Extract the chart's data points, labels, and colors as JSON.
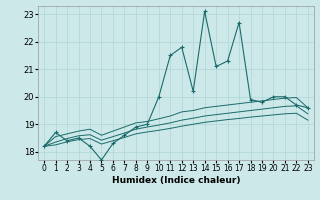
{
  "title": "",
  "xlabel": "Humidex (Indice chaleur)",
  "background_color": "#cce8e8",
  "line_color": "#1a6b6b",
  "grid_color": "#afd4d4",
  "xlim": [
    -0.5,
    23.5
  ],
  "ylim": [
    17.7,
    23.3
  ],
  "yticks": [
    18,
    19,
    20,
    21,
    22,
    23
  ],
  "xticks": [
    0,
    1,
    2,
    3,
    4,
    5,
    6,
    7,
    8,
    9,
    10,
    11,
    12,
    13,
    14,
    15,
    16,
    17,
    18,
    19,
    20,
    21,
    22,
    23
  ],
  "series_main": [
    18.2,
    18.7,
    18.4,
    18.5,
    18.2,
    17.7,
    18.3,
    18.6,
    18.9,
    19.0,
    20.0,
    21.5,
    21.8,
    20.2,
    23.1,
    21.1,
    21.3,
    22.7,
    19.9,
    19.8,
    20.0,
    20.0,
    19.7,
    19.6
  ],
  "series_smooth1": [
    18.2,
    18.55,
    18.65,
    18.75,
    18.82,
    18.6,
    18.75,
    18.9,
    19.05,
    19.1,
    19.2,
    19.3,
    19.45,
    19.5,
    19.6,
    19.65,
    19.7,
    19.75,
    19.8,
    19.85,
    19.9,
    19.95,
    19.97,
    19.6
  ],
  "series_smooth2": [
    18.2,
    18.35,
    18.48,
    18.58,
    18.62,
    18.42,
    18.55,
    18.68,
    18.82,
    18.9,
    18.97,
    19.05,
    19.15,
    19.22,
    19.3,
    19.35,
    19.4,
    19.45,
    19.5,
    19.55,
    19.6,
    19.65,
    19.67,
    19.38
  ],
  "series_smooth3": [
    18.2,
    18.25,
    18.36,
    18.44,
    18.48,
    18.28,
    18.4,
    18.52,
    18.65,
    18.72,
    18.78,
    18.85,
    18.93,
    19.0,
    19.07,
    19.12,
    19.17,
    19.21,
    19.26,
    19.3,
    19.34,
    19.38,
    19.4,
    19.15
  ]
}
